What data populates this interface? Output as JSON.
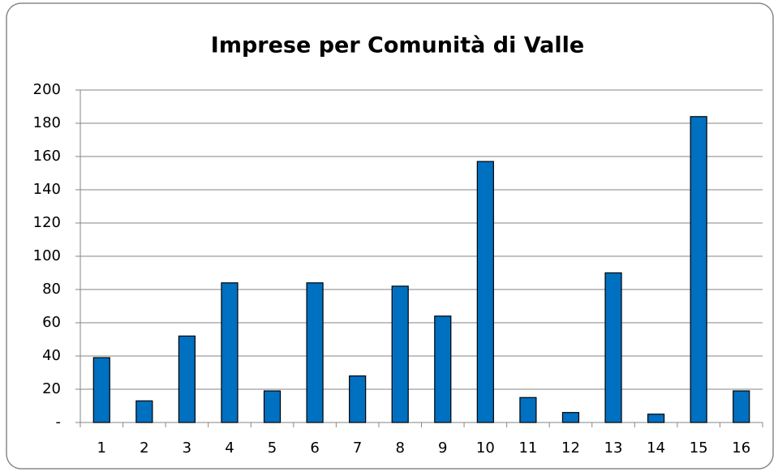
{
  "chart_data": {
    "type": "bar",
    "title": "Imprese per Comunità di Valle",
    "categories": [
      "1",
      "2",
      "3",
      "4",
      "5",
      "6",
      "7",
      "8",
      "9",
      "10",
      "11",
      "12",
      "13",
      "14",
      "15",
      "16"
    ],
    "values": [
      39,
      13,
      52,
      84,
      19,
      84,
      28,
      82,
      64,
      157,
      15,
      6,
      90,
      5,
      184,
      19
    ],
    "color": "#0070c0",
    "ylim": [
      0,
      200
    ],
    "yticks": [
      {
        "value": 0,
        "label": "-"
      },
      20,
      40,
      60,
      80,
      100,
      120,
      140,
      160,
      180,
      200
    ],
    "grid": true
  }
}
